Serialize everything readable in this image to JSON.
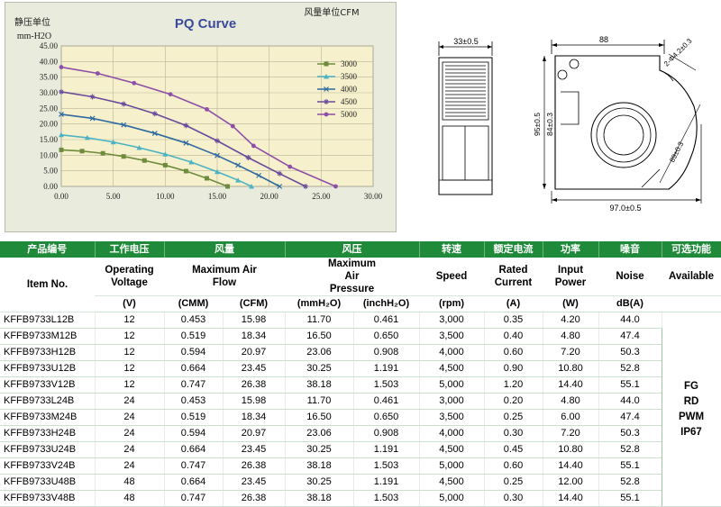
{
  "pq_chart": {
    "title": "PQ Curve",
    "ylabel_cn": "静压单位",
    "ylabel_unit": "mm-H2O",
    "xlabel_cn": "风量单位CFM",
    "chart_data": {
      "type": "line",
      "title": "PQ Curve",
      "xlabel": "风量单位CFM",
      "ylabel": "mm-H2O",
      "xlim": [
        0,
        30
      ],
      "ylim": [
        0,
        45
      ],
      "xticks": [
        "0.00",
        "5.00",
        "10.00",
        "15.00",
        "20.00",
        "25.00",
        "30.00"
      ],
      "yticks": [
        "0.00",
        "5.00",
        "10.00",
        "15.00",
        "20.00",
        "25.00",
        "30.00",
        "35.00",
        "40.00",
        "45.00"
      ],
      "grid": true,
      "legend_position": "top-right",
      "series": [
        {
          "name": "3000",
          "color": "#6e8c3c",
          "marker": "square",
          "x": [
            0.0,
            2.0,
            4.0,
            6.0,
            8.0,
            10.0,
            12.0,
            14.0,
            16.0
          ],
          "y": [
            11.7,
            11.3,
            10.6,
            9.6,
            8.3,
            6.8,
            4.9,
            2.6,
            0.0
          ]
        },
        {
          "name": "3500",
          "color": "#4db3c4",
          "marker": "triangle",
          "x": [
            0.0,
            2.5,
            5.0,
            7.5,
            10.0,
            12.5,
            15.0,
            17.0,
            18.3
          ],
          "y": [
            16.5,
            15.6,
            14.2,
            12.4,
            10.3,
            7.8,
            4.7,
            2.0,
            0.0
          ]
        },
        {
          "name": "4000",
          "color": "#2f6aa0",
          "marker": "x",
          "x": [
            0.0,
            3.0,
            6.0,
            9.0,
            12.0,
            15.0,
            17.0,
            19.0,
            21.0
          ],
          "y": [
            23.1,
            21.8,
            19.7,
            17.0,
            13.9,
            9.9,
            6.8,
            3.5,
            0.0
          ]
        },
        {
          "name": "4500",
          "color": "#6a4a9c",
          "marker": "star",
          "x": [
            0.0,
            3.0,
            6.0,
            9.0,
            12.0,
            15.0,
            18.0,
            21.0,
            23.5
          ],
          "y": [
            30.3,
            28.7,
            26.4,
            23.3,
            19.5,
            14.6,
            9.2,
            4.1,
            0.0
          ]
        },
        {
          "name": "5000",
          "color": "#8e4fa8",
          "marker": "dot",
          "x": [
            0.0,
            3.5,
            7.0,
            10.5,
            14.0,
            16.5,
            18.5,
            22.0,
            26.4
          ],
          "y": [
            38.2,
            36.2,
            33.1,
            29.5,
            24.7,
            19.3,
            13.0,
            6.3,
            0.0
          ]
        }
      ]
    }
  },
  "dims": {
    "side_width": "33±0.5",
    "top_width": "88",
    "hole": "2-Φ4.2±0.3",
    "height_outer": "95±0.5",
    "height_inner": "84±0.3",
    "diag": "89±0.3",
    "bottom_width": "97.0±0.5"
  },
  "table": {
    "cn_headers": [
      "产品编号",
      "工作电压",
      "风量",
      "风压",
      "转速",
      "额定电流",
      "功率",
      "噪音",
      "可选功能"
    ],
    "en_headers": {
      "item": "Item No.",
      "voltage": "Operating Voltage",
      "flow": "Maximum Air Flow",
      "pressure": "Maximum Air Pressure",
      "speed": "Speed",
      "current": "Rated Current",
      "power": "Input Power",
      "noise": "Noise",
      "available": "Available"
    },
    "units": [
      "(V)",
      "(CMM)",
      "(CFM)",
      "(mmH₂O)",
      "(inchH₂O)",
      "(rpm)",
      "(A)",
      "(W)",
      "dB(A)"
    ],
    "rows": [
      [
        "KFFB9733L12B",
        "12",
        "0.453",
        "15.98",
        "11.70",
        "0.461",
        "3,000",
        "0.35",
        "4.20",
        "44.0"
      ],
      [
        "KFFB9733M12B",
        "12",
        "0.519",
        "18.34",
        "16.50",
        "0.650",
        "3,500",
        "0.40",
        "4.80",
        "47.4"
      ],
      [
        "KFFB9733H12B",
        "12",
        "0.594",
        "20.97",
        "23.06",
        "0.908",
        "4,000",
        "0.60",
        "7.20",
        "50.3"
      ],
      [
        "KFFB9733U12B",
        "12",
        "0.664",
        "23.45",
        "30.25",
        "1.191",
        "4,500",
        "0.90",
        "10.80",
        "52.8"
      ],
      [
        "KFFB9733V12B",
        "12",
        "0.747",
        "26.38",
        "38.18",
        "1.503",
        "5,000",
        "1.20",
        "14.40",
        "55.1"
      ],
      [
        "KFFB9733L24B",
        "24",
        "0.453",
        "15.98",
        "11.70",
        "0.461",
        "3,000",
        "0.20",
        "4.80",
        "44.0"
      ],
      [
        "KFFB9733M24B",
        "24",
        "0.519",
        "18.34",
        "16.50",
        "0.650",
        "3,500",
        "0.25",
        "6.00",
        "47.4"
      ],
      [
        "KFFB9733H24B",
        "24",
        "0.594",
        "20.97",
        "23.06",
        "0.908",
        "4,000",
        "0.30",
        "7.20",
        "50.3"
      ],
      [
        "KFFB9733U24B",
        "24",
        "0.664",
        "23.45",
        "30.25",
        "1.191",
        "4,500",
        "0.45",
        "10.80",
        "52.8"
      ],
      [
        "KFFB9733V24B",
        "24",
        "0.747",
        "26.38",
        "38.18",
        "1.503",
        "5,000",
        "0.60",
        "14.40",
        "55.1"
      ],
      [
        "KFFB9733U48B",
        "48",
        "0.664",
        "23.45",
        "30.25",
        "1.191",
        "4,500",
        "0.25",
        "12.00",
        "52.8"
      ],
      [
        "KFFB9733V48B",
        "48",
        "0.747",
        "26.38",
        "38.18",
        "1.503",
        "5,000",
        "0.30",
        "14.40",
        "55.1"
      ]
    ],
    "available_options": [
      "FG",
      "RD",
      "PWM",
      "IP67"
    ]
  }
}
